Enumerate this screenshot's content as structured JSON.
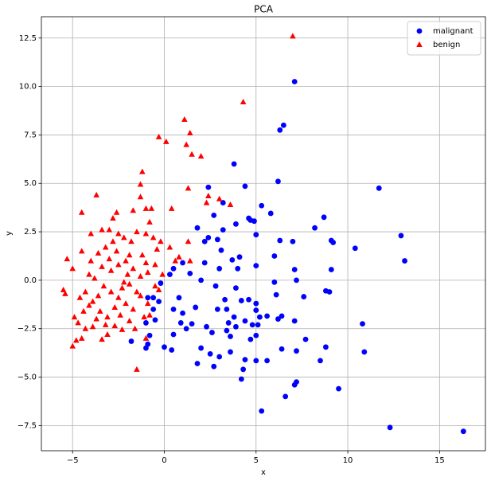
{
  "chart_data": {
    "type": "scatter",
    "title": "PCA",
    "x_label": "x",
    "y_label": "y",
    "xlim": [
      -6.7,
      17.5
    ],
    "ylim": [
      -8.8,
      13.6
    ],
    "xticks": [
      {
        "value": -5,
        "label": "−5"
      },
      0,
      5,
      10,
      15
    ],
    "yticks": [
      {
        "value": -7.5,
        "label": "−7.5"
      },
      {
        "value": -5,
        "label": "−5.0"
      },
      {
        "value": -2.5,
        "label": "−2.5"
      },
      {
        "value": 0,
        "label": "0.0"
      },
      2.5,
      {
        "value": 5,
        "label": "5.0"
      },
      7.5,
      {
        "value": 10,
        "label": "10.0"
      },
      12.5
    ],
    "grid": true,
    "legend": "upper right",
    "series": [
      {
        "name": "malignant",
        "color": "#0000ff",
        "marker": "circle",
        "x": [
          16.3,
          12.3,
          13.1,
          12.9,
          11.7,
          10.9,
          10.8,
          10.4,
          9.5,
          9.2,
          9.1,
          9.0,
          8.8,
          8.7,
          9.1,
          8.8,
          8.5,
          8.2,
          7.7,
          7.6,
          7.1,
          7.2,
          7.1,
          7.2,
          7.1,
          7.0,
          7.1,
          7.2,
          6.6,
          6.4,
          6.5,
          6.3,
          6.2,
          6.3,
          6.4,
          6.2,
          6.1,
          6.0,
          6.0,
          5.8,
          5.6,
          5.3,
          5.3,
          5.0,
          5.0,
          5.1,
          5.2,
          5.0,
          5.0,
          5.0,
          5.0,
          4.9,
          4.7,
          4.6,
          4.4,
          4.4,
          4.3,
          4.2,
          4.7,
          4.8,
          4.6,
          4.4,
          4.2,
          4.1,
          4.0,
          3.9,
          3.8,
          3.8,
          3.9,
          3.7,
          3.6,
          3.5,
          3.4,
          3.3,
          3.2,
          3.1,
          3.2,
          3.0,
          2.9,
          2.8,
          2.7,
          2.7,
          2.6,
          2.5,
          2.4,
          2.4,
          2.3,
          2.2,
          2.0,
          2.0,
          1.8,
          1.8,
          1.7,
          1.5,
          1.4,
          1.2,
          1.0,
          0.9,
          0.8,
          0.5,
          0.4,
          0.5,
          0.3,
          0.0,
          -0.2,
          -0.3,
          -0.5,
          -0.6,
          -0.8,
          -0.9,
          -1.0,
          -0.9,
          -1.0,
          -1.8,
          -0.6,
          5.6,
          3.0,
          2.2,
          1.0,
          0.5,
          3.4,
          2.9,
          3.6,
          3.9
        ],
        "y": [
          -7.8,
          -7.6,
          1.0,
          2.3,
          4.75,
          -3.7,
          -2.25,
          1.65,
          -5.6,
          1.95,
          2.05,
          -0.6,
          -0.55,
          3.25,
          0.55,
          -3.45,
          -4.15,
          2.7,
          -3.05,
          -0.85,
          -5.4,
          -5.25,
          10.25,
          -3.65,
          -2.1,
          2.0,
          0.55,
          0.0,
          -6.0,
          -3.55,
          8.0,
          7.75,
          5.1,
          2.05,
          -1.85,
          -2.0,
          -0.75,
          -0.1,
          1.25,
          3.45,
          -4.15,
          -6.75,
          3.85,
          -4.15,
          -2.85,
          -2.3,
          -1.9,
          -1.55,
          -1.2,
          0.75,
          2.35,
          3.05,
          3.1,
          3.2,
          4.85,
          -4.1,
          -4.6,
          -5.1,
          -3.05,
          -2.3,
          -1.0,
          -2.1,
          -1.05,
          1.2,
          0.6,
          -0.4,
          -1.9,
          6.0,
          2.9,
          1.05,
          -3.7,
          -2.2,
          -2.6,
          -1.0,
          2.6,
          1.55,
          4.0,
          -3.95,
          -1.5,
          -0.3,
          3.35,
          -4.45,
          -2.7,
          -3.8,
          4.8,
          2.2,
          -2.4,
          0.9,
          -3.5,
          0.0,
          2.7,
          -4.3,
          -1.4,
          -2.25,
          0.35,
          -2.5,
          -1.7,
          -2.2,
          -0.9,
          -1.5,
          -3.6,
          -2.8,
          0.3,
          -3.45,
          -0.15,
          -1.1,
          -2.05,
          -1.5,
          -2.85,
          -3.3,
          -2.2,
          -0.9,
          -3.5,
          -3.15,
          -0.9,
          -1.85,
          0.6,
          2.0,
          0.9,
          0.6,
          -1.5,
          2.1,
          -2.9,
          -2.4
        ]
      },
      {
        "name": "benign",
        "color": "#ff0000",
        "marker": "triangle",
        "x": [
          7.0,
          4.3,
          1.1,
          1.4,
          1.2,
          -0.3,
          0.1,
          1.5,
          2.0,
          -1.2,
          -1.3,
          1.3,
          -1.3,
          -3.7,
          -4.5,
          -1.0,
          -0.8,
          3.0,
          2.4,
          3.6,
          0.4,
          -1.7,
          -2.6,
          -2.8,
          -3.4,
          -4.0,
          -4.5,
          -5.3,
          -5.0,
          -5.5,
          -5.4,
          -4.9,
          -4.8,
          -5.0,
          -4.5,
          -4.3,
          -3.9,
          -3.4,
          -3.1,
          -2.7,
          -2.3,
          -1.9,
          -1.5,
          -1.0,
          -0.8,
          -3.6,
          -3.8,
          -4.1,
          -4.3,
          -4.6,
          -4.0,
          -3.6,
          -3.2,
          -2.8,
          -2.5,
          -2.2,
          -1.8,
          -1.5,
          -1.0,
          -0.6,
          -0.2,
          0.3,
          0.8,
          1.4,
          1.3,
          -2.9,
          -2.5,
          -2.1,
          -1.7,
          -1.3,
          -0.9,
          -0.5,
          -0.1,
          -3.3,
          -2.9,
          -2.5,
          -2.1,
          -1.7,
          -1.3,
          -0.9,
          -3.5,
          -3.1,
          -2.7,
          -2.3,
          -1.9,
          -1.5,
          -4.1,
          -3.7,
          -2.0,
          -2.6,
          -3.0,
          -1.2,
          -0.4,
          -4.4,
          -3.9,
          -2.4,
          -1.6,
          -1.1,
          -0.5,
          0.6,
          2.3,
          -0.7,
          -3.0,
          -1.9,
          -2.2,
          -1.0,
          -3.4,
          -4.7,
          -3.2,
          -0.3
        ],
        "y": [
          12.6,
          9.2,
          8.3,
          7.6,
          7.0,
          7.4,
          7.15,
          6.5,
          6.4,
          5.6,
          4.95,
          4.75,
          4.3,
          4.4,
          3.5,
          3.7,
          3.0,
          4.2,
          4.35,
          3.9,
          3.7,
          3.6,
          3.5,
          3.2,
          2.6,
          2.4,
          1.5,
          1.1,
          0.6,
          -0.5,
          -0.7,
          -1.9,
          -3.1,
          -3.4,
          -3.0,
          -2.5,
          -2.4,
          -3.05,
          -2.8,
          -2.35,
          -2.55,
          -2.1,
          -4.6,
          -3.0,
          -1.8,
          -0.8,
          0.1,
          0.3,
          -0.6,
          -0.9,
          1.0,
          1.4,
          1.7,
          2.0,
          2.4,
          2.2,
          2.0,
          2.5,
          2.4,
          2.2,
          2.0,
          1.7,
          1.2,
          1.0,
          2.0,
          0.5,
          0.8,
          1.0,
          0.6,
          0.2,
          0.4,
          0.8,
          0.3,
          -0.3,
          -0.6,
          -0.9,
          -1.2,
          -1.5,
          -0.8,
          -1.2,
          -1.6,
          -1.9,
          -1.4,
          -0.4,
          -0.2,
          -0.6,
          -1.3,
          -2.0,
          0.3,
          1.5,
          1.1,
          1.3,
          1.6,
          -1.6,
          -1.1,
          -1.8,
          -2.5,
          -1.9,
          -0.3,
          1.0,
          4.0,
          3.7,
          2.6,
          1.3,
          -0.1,
          0.9,
          0.7,
          -2.2,
          -2.3,
          -0.5
        ]
      }
    ]
  }
}
